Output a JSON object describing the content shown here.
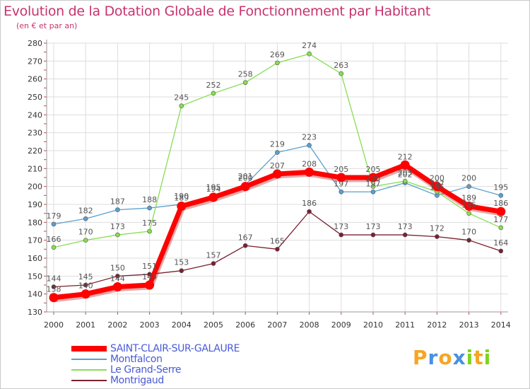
{
  "chart_data": {
    "type": "line",
    "title": "Evolution de la Dotation Globale de Fonctionnement par Habitant",
    "subtitle": "(en € et par an)",
    "xlabel": "",
    "ylabel": "",
    "ylim": [
      130,
      280
    ],
    "yticks": [
      130,
      140,
      150,
      160,
      170,
      180,
      190,
      200,
      210,
      220,
      230,
      240,
      250,
      260,
      270,
      280
    ],
    "categories": [
      "2000",
      "2001",
      "2002",
      "2003",
      "2004",
      "2005",
      "2006",
      "2007",
      "2008",
      "2009",
      "2010",
      "2011",
      "2012",
      "2013",
      "2014"
    ],
    "grid": true,
    "legend_position": "bottom-left",
    "series": [
      {
        "name": "SAINT-CLAIR-SUR-GALAURE",
        "color": "#ff0000",
        "highlight": true,
        "values": [
          138,
          140,
          144,
          145,
          189,
          194,
          200,
          207,
          208,
          205,
          205,
          212,
          200,
          189,
          186
        ],
        "labels": [
          "138",
          "140",
          "144",
          "145",
          "189",
          "194",
          "200",
          "207",
          "208",
          "205",
          "205",
          "212",
          "200",
          "189",
          "186"
        ]
      },
      {
        "name": "Montfalcon",
        "color": "#5aa0d0",
        "highlight": false,
        "values": [
          179,
          182,
          187,
          188,
          190,
          195,
          201,
          219,
          223,
          197,
          197,
          202,
          195,
          200,
          195
        ],
        "labels": [
          "179",
          "182",
          "187",
          "188",
          "190",
          "195",
          "201",
          "219",
          "223",
          "197",
          "197",
          "202",
          "195",
          "200",
          "195"
        ]
      },
      {
        "name": "Le Grand-Serre",
        "color": "#88dd55",
        "highlight": false,
        "values": [
          166,
          170,
          173,
          175,
          245,
          252,
          258,
          269,
          274,
          263,
          200,
          203,
          197,
          185,
          177
        ],
        "labels": [
          "166",
          "170",
          "173",
          "175",
          "245",
          "252",
          "258",
          "269",
          "274",
          "263",
          "200",
          "203",
          "197",
          "185",
          "177"
        ]
      },
      {
        "name": "Montrigaud",
        "color": "#7a2030",
        "highlight": false,
        "values": [
          144,
          145,
          150,
          151,
          153,
          157,
          167,
          165,
          186,
          173,
          173,
          173,
          172,
          170,
          164
        ],
        "labels": [
          "144",
          "145",
          "150",
          "151",
          "153",
          "157",
          "167",
          "165",
          "186",
          "173",
          "173",
          "173",
          "172",
          "170",
          "164"
        ]
      }
    ]
  },
  "logo": {
    "letters": [
      "P",
      "r",
      "o",
      "x",
      "i",
      "t",
      "i"
    ],
    "colors": [
      "#f5a623",
      "#4a90e2",
      "#f5a623",
      "#4a90e2",
      "#7ed321",
      "#f5a623",
      "#7ed321"
    ]
  }
}
